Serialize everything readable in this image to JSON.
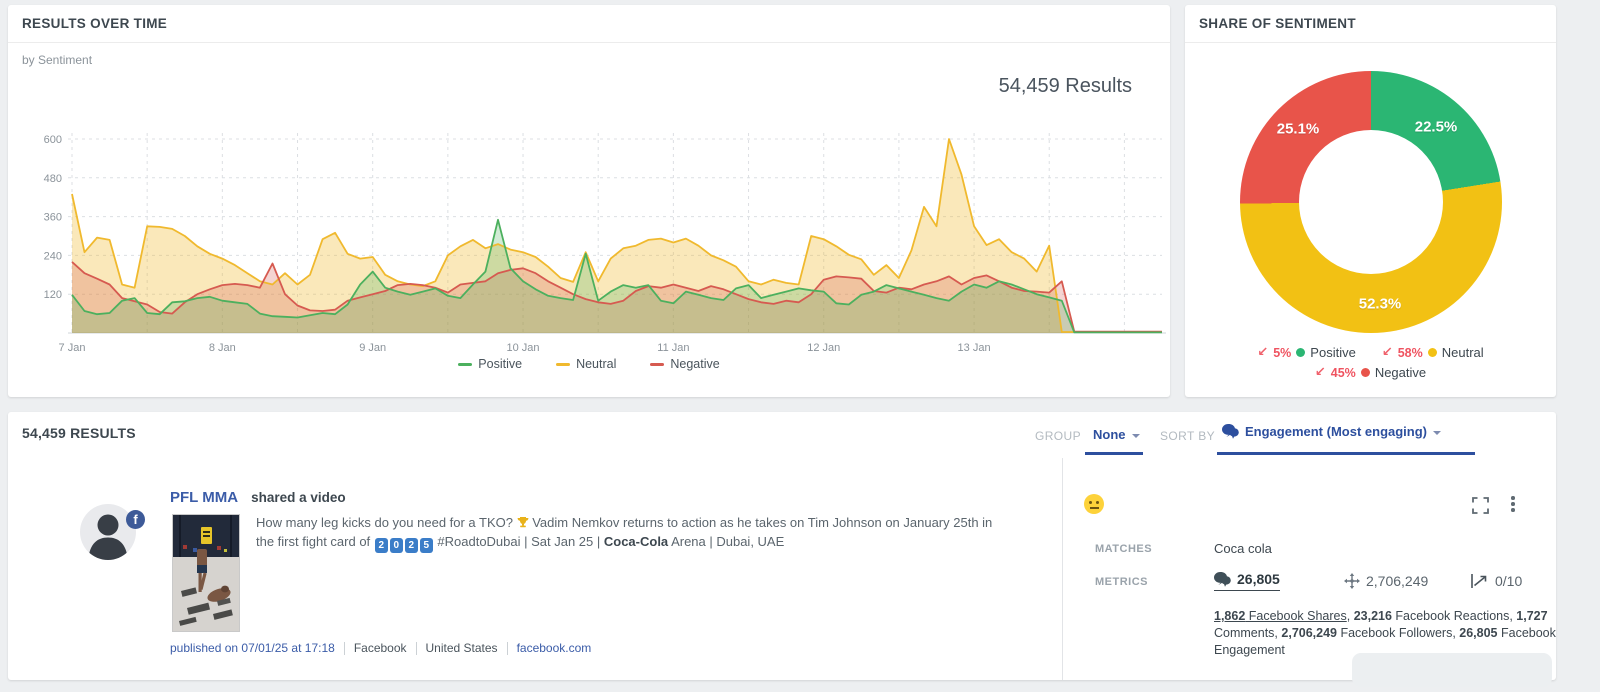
{
  "results_over_time": {
    "title": "RESULTS OVER TIME",
    "subtitle": "by Sentiment",
    "total": "54,459 Results"
  },
  "share_of_sentiment": {
    "title": "SHARE OF SENTIMENT"
  },
  "chart_data": [
    {
      "type": "area",
      "title": "Results over time by Sentiment",
      "x_start_day": 7,
      "x_end_day": 14.25,
      "x_tick_days": [
        7,
        8,
        9,
        10,
        11,
        12,
        13
      ],
      "x_tick_labels": [
        "7 Jan",
        "8 Jan",
        "9 Jan",
        "10 Jan",
        "11 Jan",
        "12 Jan",
        "13 Jan"
      ],
      "ylim": [
        0,
        650
      ],
      "yticks": [
        120,
        240,
        360,
        480,
        600
      ],
      "grid": "dashed",
      "legend_position": "bottom",
      "series": [
        {
          "name": "Neutral",
          "color": "#f0b92e",
          "fill": "rgba(240,185,46,0.33)",
          "values": [
            430,
            250,
            295,
            288,
            150,
            140,
            330,
            328,
            322,
            300,
            268,
            245,
            230,
            210,
            185,
            160,
            150,
            185,
            150,
            180,
            290,
            310,
            245,
            230,
            235,
            180,
            160,
            150,
            145,
            160,
            240,
            268,
            288,
            262,
            275,
            258,
            250,
            235,
            205,
            170,
            158,
            250,
            160,
            230,
            262,
            270,
            288,
            292,
            280,
            292,
            270,
            240,
            225,
            205,
            160,
            150,
            165,
            155,
            150,
            300,
            290,
            268,
            242,
            228,
            180,
            210,
            170,
            255,
            390,
            330,
            600,
            490,
            330,
            272,
            290,
            250,
            230,
            190,
            270,
            3,
            3,
            3,
            3,
            3,
            3,
            3,
            3,
            3
          ]
        },
        {
          "name": "Negative",
          "color": "#d65a50",
          "fill": "rgba(214,90,80,0.26)",
          "values": [
            220,
            185,
            168,
            150,
            108,
            98,
            88,
            65,
            60,
            95,
            120,
            135,
            148,
            152,
            148,
            140,
            215,
            120,
            85,
            70,
            68,
            72,
            100,
            110,
            120,
            130,
            148,
            152,
            148,
            140,
            125,
            150,
            155,
            160,
            185,
            195,
            200,
            185,
            160,
            140,
            120,
            105,
            95,
            90,
            100,
            130,
            145,
            140,
            150,
            140,
            130,
            145,
            135,
            120,
            105,
            95,
            90,
            100,
            95,
            120,
            165,
            175,
            172,
            168,
            130,
            125,
            140,
            135,
            150,
            160,
            175,
            150,
            170,
            178,
            160,
            140,
            130,
            128,
            125,
            160,
            4,
            4,
            4,
            4,
            4,
            4,
            4,
            4
          ]
        },
        {
          "name": "Positive",
          "color": "#4cb05e",
          "fill": "rgba(76,176,94,0.26)",
          "values": [
            118,
            68,
            58,
            62,
            100,
            108,
            62,
            58,
            95,
            98,
            108,
            112,
            100,
            95,
            90,
            60,
            52,
            50,
            48,
            55,
            62,
            58,
            88,
            150,
            190,
            140,
            128,
            118,
            128,
            138,
            115,
            108,
            150,
            190,
            350,
            200,
            160,
            135,
            115,
            108,
            102,
            245,
            100,
            128,
            148,
            140,
            148,
            100,
            92,
            128,
            118,
            108,
            102,
            138,
            148,
            108,
            118,
            128,
            138,
            132,
            128,
            92,
            88,
            118,
            128,
            148,
            138,
            128,
            118,
            108,
            100,
            128,
            150,
            140,
            160,
            150,
            135,
            120,
            110,
            100,
            2,
            2,
            2,
            2,
            2,
            2,
            2,
            2
          ]
        }
      ],
      "legend": [
        {
          "name": "Positive",
          "color": "#4cb05e"
        },
        {
          "name": "Neutral",
          "color": "#f0b92e"
        },
        {
          "name": "Negative",
          "color": "#d65a50"
        }
      ]
    },
    {
      "type": "donut",
      "title": "Share of sentiment",
      "legend_position": "bottom",
      "slices": [
        {
          "name": "Positive",
          "value": 22.5,
          "label": "22.5%",
          "color": "#2bb673",
          "change": "5%",
          "change_dir": "down"
        },
        {
          "name": "Neutral",
          "value": 52.3,
          "label": "52.3%",
          "color": "#f2c114",
          "change": "58%",
          "change_dir": "down"
        },
        {
          "name": "Negative",
          "value": 25.1,
          "label": "25.1%",
          "color": "#e8544a",
          "change": "45%",
          "change_dir": "down"
        }
      ]
    }
  ],
  "results_panel": {
    "count": "54,459 RESULTS",
    "group_label": "GROUP",
    "group_value": "None",
    "sort_label": "SORT BY",
    "sort_value": "Engagement (Most engaging)"
  },
  "post": {
    "author": "PFL MMA",
    "action": "shared a video",
    "message_segments": [
      {
        "t": "How many leg kicks do you need for a TKO? "
      },
      {
        "icon": "trophy"
      },
      {
        "t": " Vadim Nemkov returns to action as he takes on Tim Johnson on January 25th in the first fight card of "
      },
      {
        "t": "2",
        "keycap": true
      },
      {
        "t": "0",
        "keycap": true
      },
      {
        "t": "2",
        "keycap": true
      },
      {
        "t": "5",
        "keycap": true
      },
      {
        "t": " #RoadtoDubai | Sat Jan 25 | "
      },
      {
        "t": "Coca-Cola",
        "b": true,
        "dark": true
      },
      {
        "t": " Arena | Dubai, UAE"
      }
    ],
    "published": "published on 07/01/25 at 17:18",
    "network": "Facebook",
    "location": "United States",
    "domain": "facebook.com",
    "sentiment": "neutral",
    "matches_label": "MATCHES",
    "matches_value": "Coca cola",
    "metrics_label": "METRICS",
    "metrics": {
      "engagement": "26,805",
      "audience": "2,706,249",
      "impact": "0/10"
    },
    "metric_details_segments": [
      {
        "t": "1,862",
        "b": true,
        "u": true
      },
      {
        "t": " Facebook Shares",
        "u": true
      },
      {
        "t": ", "
      },
      {
        "t": "23,216",
        "b": true
      },
      {
        "t": " Facebook Reactions, "
      },
      {
        "t": "1,727",
        "b": true
      },
      {
        "t": " Comments, "
      },
      {
        "t": "2,706,249",
        "b": true
      },
      {
        "t": " Facebook Followers, "
      },
      {
        "t": "26,805",
        "b": true
      },
      {
        "t": " Facebook Engagement"
      }
    ]
  }
}
